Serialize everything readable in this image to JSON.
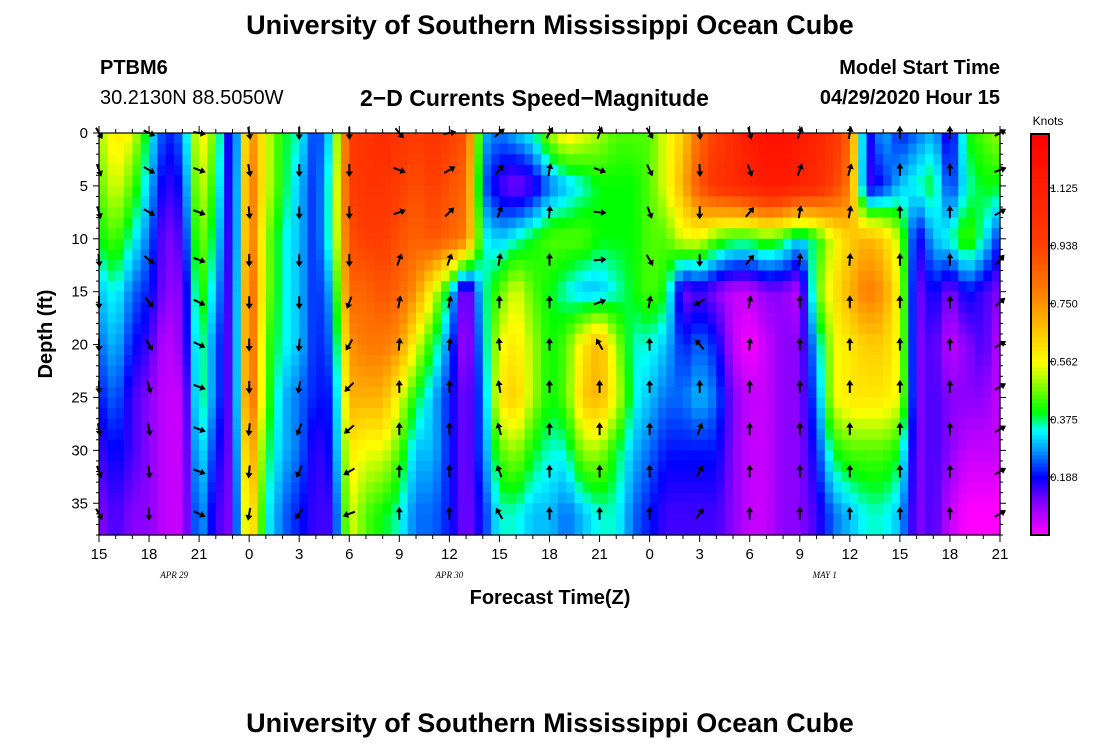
{
  "header": {
    "title_top": "University of Southern Mississippi Ocean Cube",
    "title_bottom": "University of Southern Mississippi Ocean Cube",
    "station_id": "PTBM6",
    "station_coords": "30.2130N 88.5050W",
    "chart_subtitle": "2−D Currents Speed−Magnitude",
    "model_start_label": "Model Start Time",
    "model_start_value": "04/29/2020 Hour 15"
  },
  "colorbar": {
    "unit_label": "Knots",
    "tick_labels": [
      "1.125",
      "0.938",
      "0.750",
      "0.562",
      "0.375",
      "0.188"
    ],
    "tick_values": [
      1.125,
      0.938,
      0.75,
      0.562,
      0.375,
      0.188
    ],
    "range": [
      0,
      1.3
    ]
  },
  "chart_data": {
    "type": "heatmap",
    "title": "2-D Currents Speed-Magnitude",
    "xlabel": "Forecast Time(Z)",
    "ylabel": "Depth (ft)",
    "x_tick_labels": [
      "15",
      "18",
      "21",
      "0",
      "3",
      "6",
      "9",
      "12",
      "15",
      "18",
      "21",
      "0",
      "3",
      "6",
      "9",
      "12",
      "15",
      "18",
      "21"
    ],
    "x_range_hours": [
      0,
      54
    ],
    "date_labels": [
      {
        "text": "APR 29",
        "hour": 4.5
      },
      {
        "text": "APR 30",
        "hour": 21
      },
      {
        "text": "MAY 1",
        "hour": 43.5
      }
    ],
    "y_tick_labels": [
      "0",
      "5",
      "10",
      "15",
      "20",
      "25",
      "30",
      "35"
    ],
    "y_tick_values": [
      0,
      5,
      10,
      15,
      20,
      25,
      30,
      35
    ],
    "ylim": [
      0,
      38
    ],
    "speed_grid_knots": {
      "hours": [
        0,
        1,
        2,
        3,
        4,
        5,
        6,
        7,
        8,
        9,
        10,
        11,
        12,
        13,
        14,
        15,
        16,
        17,
        18,
        19,
        20,
        21,
        22,
        23,
        24,
        25,
        26,
        27,
        28,
        29,
        30,
        31,
        32,
        33,
        34,
        35,
        36,
        37,
        38,
        39,
        40,
        41,
        42,
        43,
        44,
        45,
        46,
        47,
        48,
        49,
        50,
        51,
        52,
        53,
        54
      ],
      "depths_ft": [
        0,
        5,
        10,
        15,
        20,
        25,
        30,
        36
      ],
      "rows": [
        [
          0.5,
          0.6,
          0.55,
          0.35,
          0.2,
          0.25,
          0.6,
          0.45,
          0.1,
          0.8,
          0.55,
          0.4,
          0.35,
          0.2,
          0.35,
          0.95,
          1.0,
          1.05,
          1.0,
          0.95,
          1.0,
          0.95,
          0.9,
          0.3,
          0.25,
          0.3,
          0.35,
          0.5,
          0.6,
          0.55,
          0.5,
          0.45,
          0.45,
          0.45,
          0.55,
          0.65,
          0.85,
          0.95,
          1.05,
          1.15,
          1.2,
          1.2,
          1.15,
          1.1,
          1.0,
          0.85,
          0.15,
          0.3,
          0.2,
          0.25,
          0.3,
          0.15,
          0.4,
          0.45,
          0.5
        ],
        [
          0.45,
          0.55,
          0.45,
          0.3,
          0.15,
          0.2,
          0.55,
          0.4,
          0.1,
          0.85,
          0.55,
          0.4,
          0.3,
          0.2,
          0.4,
          0.95,
          1.0,
          1.0,
          0.95,
          0.9,
          0.95,
          0.9,
          0.85,
          0.25,
          0.15,
          0.1,
          0.15,
          0.25,
          0.3,
          0.35,
          0.4,
          0.4,
          0.4,
          0.45,
          0.55,
          0.7,
          0.9,
          1.0,
          1.05,
          1.1,
          1.15,
          1.15,
          1.1,
          1.05,
          0.95,
          0.8,
          0.15,
          0.2,
          0.3,
          0.35,
          0.4,
          0.2,
          0.35,
          0.4,
          0.4
        ],
        [
          0.4,
          0.45,
          0.35,
          0.25,
          0.1,
          0.15,
          0.5,
          0.35,
          0.1,
          0.85,
          0.5,
          0.35,
          0.3,
          0.2,
          0.4,
          0.9,
          0.95,
          0.95,
          0.9,
          0.85,
          0.9,
          0.85,
          0.8,
          0.35,
          0.3,
          0.35,
          0.4,
          0.45,
          0.45,
          0.45,
          0.4,
          0.4,
          0.4,
          0.45,
          0.45,
          0.55,
          0.55,
          0.45,
          0.4,
          0.4,
          0.45,
          0.4,
          0.3,
          0.4,
          0.55,
          0.65,
          0.7,
          0.65,
          0.5,
          0.15,
          0.3,
          0.35,
          0.45,
          0.35,
          0.2
        ],
        [
          0.3,
          0.35,
          0.25,
          0.2,
          0.1,
          0.1,
          0.45,
          0.3,
          0.1,
          0.9,
          0.5,
          0.35,
          0.3,
          0.2,
          0.3,
          0.85,
          0.85,
          0.9,
          0.85,
          0.75,
          0.55,
          0.35,
          0.05,
          0.35,
          0.45,
          0.55,
          0.45,
          0.4,
          0.35,
          0.3,
          0.3,
          0.35,
          0.4,
          0.45,
          0.4,
          0.1,
          0.15,
          0.1,
          0.05,
          0.05,
          0.1,
          0.1,
          0.05,
          0.45,
          0.6,
          0.7,
          0.8,
          0.75,
          0.55,
          0.1,
          0.2,
          0.1,
          0.2,
          0.15,
          0.1
        ],
        [
          0.25,
          0.3,
          0.2,
          0.15,
          0.05,
          0.1,
          0.4,
          0.25,
          0.1,
          0.9,
          0.45,
          0.35,
          0.3,
          0.2,
          0.25,
          0.75,
          0.8,
          0.8,
          0.75,
          0.55,
          0.4,
          0.25,
          0.05,
          0.3,
          0.55,
          0.6,
          0.5,
          0.4,
          0.45,
          0.6,
          0.7,
          0.5,
          0.35,
          0.35,
          0.3,
          0.2,
          0.25,
          0.2,
          0.05,
          0.0,
          0.05,
          0.1,
          0.1,
          0.3,
          0.55,
          0.6,
          0.65,
          0.65,
          0.55,
          0.1,
          0.15,
          0.05,
          0.1,
          0.15,
          0.05
        ],
        [
          0.2,
          0.25,
          0.15,
          0.1,
          0.05,
          0.05,
          0.4,
          0.25,
          0.1,
          0.9,
          0.45,
          0.3,
          0.25,
          0.2,
          0.2,
          0.7,
          0.7,
          0.7,
          0.55,
          0.4,
          0.3,
          0.2,
          0.1,
          0.25,
          0.6,
          0.65,
          0.5,
          0.4,
          0.45,
          0.65,
          0.7,
          0.55,
          0.35,
          0.3,
          0.25,
          0.25,
          0.3,
          0.25,
          0.1,
          0.05,
          0.05,
          0.1,
          0.1,
          0.25,
          0.55,
          0.6,
          0.6,
          0.6,
          0.55,
          0.1,
          0.15,
          0.1,
          0.1,
          0.1,
          0.05
        ],
        [
          0.15,
          0.2,
          0.15,
          0.1,
          0.05,
          0.05,
          0.35,
          0.2,
          0.1,
          0.8,
          0.4,
          0.3,
          0.25,
          0.15,
          0.2,
          0.6,
          0.55,
          0.55,
          0.45,
          0.3,
          0.3,
          0.2,
          0.1,
          0.25,
          0.45,
          0.5,
          0.4,
          0.35,
          0.35,
          0.5,
          0.5,
          0.4,
          0.3,
          0.25,
          0.2,
          0.2,
          0.2,
          0.2,
          0.1,
          0.05,
          0.05,
          0.1,
          0.1,
          0.2,
          0.4,
          0.45,
          0.45,
          0.45,
          0.4,
          0.1,
          0.15,
          0.1,
          0.05,
          0.05,
          0.05
        ],
        [
          0.1,
          0.15,
          0.1,
          0.1,
          0.05,
          0.05,
          0.3,
          0.15,
          0.1,
          0.7,
          0.35,
          0.25,
          0.2,
          0.15,
          0.15,
          0.55,
          0.45,
          0.4,
          0.35,
          0.25,
          0.25,
          0.2,
          0.1,
          0.2,
          0.35,
          0.35,
          0.3,
          0.3,
          0.25,
          0.3,
          0.35,
          0.35,
          0.25,
          0.2,
          0.15,
          0.15,
          0.15,
          0.15,
          0.1,
          0.05,
          0.05,
          0.1,
          0.1,
          0.15,
          0.25,
          0.3,
          0.35,
          0.35,
          0.3,
          0.1,
          0.15,
          0.05,
          0.0,
          0.0,
          0.0
        ]
      ]
    },
    "vector_columns_hours": [
      0,
      3,
      6,
      9,
      12,
      15,
      18,
      21,
      24,
      27,
      30,
      33,
      36,
      39,
      42,
      45,
      48,
      51,
      54
    ],
    "vector_depths_ft": [
      0,
      3.5,
      7.5,
      12,
      16,
      20,
      24,
      28,
      32,
      36
    ],
    "vector_angles_deg": [
      [
        150,
        160,
        165,
        175,
        180,
        180,
        180,
        170,
        160,
        150
      ],
      [
        115,
        120,
        120,
        130,
        140,
        150,
        165,
        170,
        175,
        180
      ],
      [
        100,
        110,
        110,
        110,
        115,
        115,
        110,
        110,
        110,
        115
      ],
      [
        170,
        170,
        175,
        180,
        180,
        180,
        180,
        185,
        185,
        190
      ],
      [
        180,
        180,
        180,
        180,
        180,
        185,
        190,
        200,
        205,
        215
      ],
      [
        180,
        180,
        180,
        180,
        200,
        210,
        225,
        230,
        240,
        250
      ],
      [
        140,
        110,
        70,
        20,
        10,
        5,
        0,
        0,
        0,
        0
      ],
      [
        80,
        60,
        45,
        20,
        10,
        5,
        0,
        0,
        0,
        0
      ],
      [
        50,
        40,
        20,
        10,
        0,
        -5,
        -10,
        -15,
        -20,
        -30
      ],
      [
        30,
        10,
        5,
        0,
        0,
        0,
        0,
        0,
        0,
        0
      ],
      [
        20,
        110,
        95,
        85,
        70,
        -30,
        0,
        0,
        0,
        0
      ],
      [
        150,
        155,
        160,
        150,
        10,
        0,
        0,
        0,
        0,
        0
      ],
      [
        175,
        178,
        180,
        180,
        -120,
        -40,
        0,
        20,
        30,
        35
      ],
      [
        165,
        160,
        40,
        40,
        10,
        5,
        0,
        0,
        0,
        0
      ],
      [
        20,
        20,
        10,
        5,
        0,
        0,
        0,
        0,
        0,
        0
      ],
      [
        10,
        15,
        10,
        5,
        0,
        0,
        0,
        0,
        0,
        0
      ],
      [
        0,
        0,
        0,
        0,
        0,
        0,
        0,
        0,
        0,
        0
      ],
      [
        0,
        0,
        0,
        0,
        0,
        0,
        0,
        0,
        0,
        0
      ],
      [
        60,
        70,
        60,
        40,
        50,
        60,
        60,
        60,
        60,
        60
      ]
    ]
  }
}
